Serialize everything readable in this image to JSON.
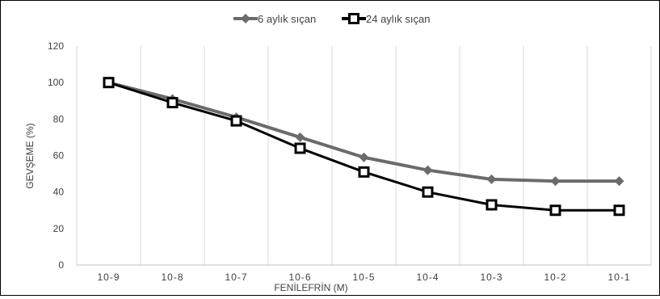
{
  "chart_data": {
    "type": "line",
    "title": "",
    "xlabel": "FENİLEFRİN (M)",
    "ylabel": "GEVŞEME (%)",
    "categories": [
      "10-9",
      "10-8",
      "10-7",
      "10-6",
      "10-5",
      "10-4",
      "10-3",
      "10-2",
      "10-1"
    ],
    "ylim": [
      0,
      120
    ],
    "yticks": [
      0,
      20,
      40,
      60,
      80,
      100,
      120
    ],
    "grid": "vertical",
    "legend_position": "top",
    "series": [
      {
        "name": "6 aylık sıçan",
        "color": "#6b6b6b",
        "marker": "diamond",
        "values": [
          100,
          91,
          81,
          70,
          59,
          52,
          47,
          46,
          46
        ]
      },
      {
        "name": "24 aylık sıçan",
        "color": "#000000",
        "marker": "square",
        "values": [
          100,
          89,
          79,
          64,
          51,
          40,
          33,
          30,
          30
        ]
      }
    ]
  }
}
